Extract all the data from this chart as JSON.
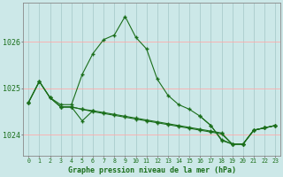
{
  "title": "Graphe pression niveau de la mer (hPa)",
  "background_color": "#cce8e8",
  "grid_color_v": "#aacccc",
  "grid_color_h": "#ffaaaa",
  "line_color": "#1a6e1a",
  "x_labels": [
    "0",
    "1",
    "2",
    "3",
    "4",
    "5",
    "6",
    "7",
    "8",
    "9",
    "10",
    "11",
    "12",
    "13",
    "14",
    "15",
    "16",
    "17",
    "18",
    "19",
    "20",
    "21",
    "22",
    "23"
  ],
  "y_main": [
    1024.7,
    1025.15,
    1024.8,
    1024.65,
    1024.65,
    1025.3,
    1025.75,
    1026.05,
    1026.15,
    1026.55,
    1026.1,
    1025.85,
    1025.2,
    1024.85,
    1024.65,
    1024.55,
    1024.4,
    1024.2,
    1023.9,
    1023.8,
    1023.8,
    1024.1,
    1024.15,
    1024.2
  ],
  "y_flat1": [
    1024.7,
    1025.15,
    1024.8,
    1024.6,
    1024.6,
    1024.55,
    1024.52,
    1024.48,
    1024.44,
    1024.4,
    1024.36,
    1024.32,
    1024.28,
    1024.24,
    1024.2,
    1024.16,
    1024.12,
    1024.08,
    1024.04,
    1023.8,
    1023.8,
    1024.1,
    1024.15,
    1024.2
  ],
  "y_flat2": [
    1024.7,
    1025.15,
    1024.8,
    1024.6,
    1024.6,
    1024.55,
    1024.5,
    1024.46,
    1024.42,
    1024.38,
    1024.34,
    1024.3,
    1024.26,
    1024.22,
    1024.18,
    1024.14,
    1024.1,
    1024.06,
    1024.02,
    1023.8,
    1023.8,
    1024.1,
    1024.15,
    1024.2
  ],
  "y_dip": [
    1024.7,
    null,
    null,
    1024.6,
    1024.6,
    1024.3,
    1024.52,
    null,
    null,
    null,
    null,
    null,
    null,
    null,
    null,
    null,
    1024.4,
    1024.2,
    1023.88,
    1023.8,
    1023.8,
    1024.1,
    1024.15,
    1024.2
  ],
  "ylim": [
    1023.55,
    1026.85
  ],
  "yticks": [
    1024,
    1025,
    1026
  ],
  "figsize": [
    3.2,
    2.0
  ],
  "dpi": 100
}
